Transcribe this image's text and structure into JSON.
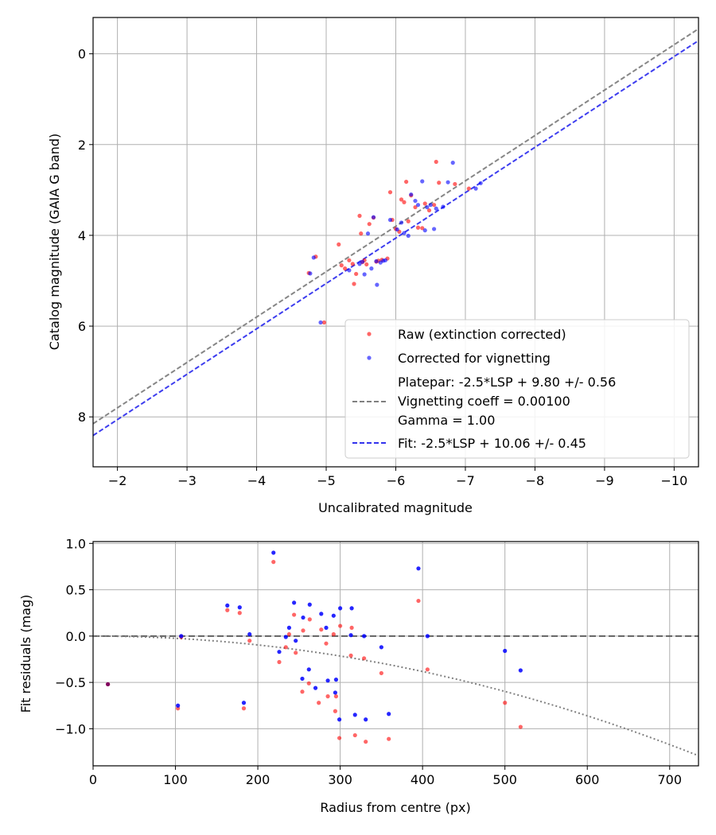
{
  "chart_data": [
    {
      "type": "scatter",
      "xlabel": "Uncalibrated magnitude",
      "ylabel": "Catalog magnitude (GAIA G band)",
      "xlim": [
        -1.65,
        -10.35
      ],
      "ylim": [
        9.1,
        -0.8
      ],
      "x_inverted": true,
      "y_inverted": true,
      "x_ticks": [
        -2,
        -3,
        -4,
        -5,
        -6,
        -7,
        -8,
        -9,
        -10
      ],
      "x_tick_labels": [
        "−2",
        "−3",
        "−4",
        "−5",
        "−6",
        "−7",
        "−8",
        "−9",
        "−10"
      ],
      "y_ticks": [
        0,
        2,
        4,
        6,
        8
      ],
      "y_tick_labels": [
        "0",
        "2",
        "4",
        "6",
        "8"
      ],
      "grid": true,
      "legend_placement": "lower-right",
      "series": [
        {
          "name": "Raw (extinction corrected)",
          "kind": "points",
          "color": "#ff0000",
          "points": [
            [
              -4.75,
              4.83
            ],
            [
              -4.85,
              4.47
            ],
            [
              -4.97,
              5.92
            ],
            [
              -5.18,
              4.2
            ],
            [
              -5.22,
              4.66
            ],
            [
              -5.27,
              4.73
            ],
            [
              -5.33,
              4.55
            ],
            [
              -5.38,
              4.63
            ],
            [
              -5.4,
              5.07
            ],
            [
              -5.43,
              4.85
            ],
            [
              -5.48,
              3.57
            ],
            [
              -5.5,
              3.96
            ],
            [
              -5.52,
              4.59
            ],
            [
              -5.55,
              4.55
            ],
            [
              -5.58,
              4.64
            ],
            [
              -5.62,
              3.75
            ],
            [
              -5.68,
              3.61
            ],
            [
              -5.72,
              4.58
            ],
            [
              -5.75,
              4.56
            ],
            [
              -5.8,
              4.54
            ],
            [
              -5.88,
              4.51
            ],
            [
              -5.92,
              3.05
            ],
            [
              -5.95,
              3.66
            ],
            [
              -6.0,
              3.86
            ],
            [
              -6.05,
              3.92
            ],
            [
              -6.08,
              3.21
            ],
            [
              -6.12,
              3.27
            ],
            [
              -6.15,
              2.82
            ],
            [
              -6.18,
              3.69
            ],
            [
              -6.22,
              3.12
            ],
            [
              -6.28,
              3.38
            ],
            [
              -6.32,
              3.83
            ],
            [
              -6.38,
              3.84
            ],
            [
              -6.42,
              3.3
            ],
            [
              -6.48,
              3.45
            ],
            [
              -6.55,
              3.33
            ],
            [
              -6.58,
              2.38
            ],
            [
              -6.62,
              2.84
            ],
            [
              -6.85,
              2.87
            ],
            [
              -7.05,
              2.97
            ]
          ]
        },
        {
          "name": "Corrected for vignetting",
          "kind": "points",
          "color": "#0000ff",
          "points": [
            [
              -4.77,
              4.84
            ],
            [
              -4.82,
              4.49
            ],
            [
              -4.92,
              5.92
            ],
            [
              -5.33,
              4.77
            ],
            [
              -5.48,
              4.63
            ],
            [
              -5.52,
              4.58
            ],
            [
              -5.55,
              4.86
            ],
            [
              -5.6,
              3.96
            ],
            [
              -5.65,
              4.73
            ],
            [
              -5.68,
              3.6
            ],
            [
              -5.72,
              4.57
            ],
            [
              -5.73,
              5.09
            ],
            [
              -5.78,
              4.6
            ],
            [
              -5.82,
              4.56
            ],
            [
              -5.85,
              4.55
            ],
            [
              -5.92,
              3.66
            ],
            [
              -6.02,
              3.87
            ],
            [
              -6.08,
              3.72
            ],
            [
              -6.12,
              3.95
            ],
            [
              -6.18,
              4.01
            ],
            [
              -6.22,
              3.1
            ],
            [
              -6.28,
              3.24
            ],
            [
              -6.32,
              3.33
            ],
            [
              -6.38,
              2.81
            ],
            [
              -6.42,
              3.89
            ],
            [
              -6.45,
              3.38
            ],
            [
              -6.5,
              3.33
            ],
            [
              -6.55,
              3.86
            ],
            [
              -6.58,
              3.41
            ],
            [
              -6.68,
              3.37
            ],
            [
              -6.75,
              2.83
            ],
            [
              -6.82,
              2.4
            ],
            [
              -7.15,
              2.97
            ],
            [
              -7.22,
              2.85
            ]
          ]
        },
        {
          "name": "Platepar: -2.5*LSP + 9.80 +/- 0.56",
          "name_line2": "Vignetting coeff = 0.00100",
          "name_line3": "Gamma = 1.00",
          "kind": "line",
          "style": "dashed",
          "color": "#808080",
          "slope": 1.0,
          "intercept": 9.8
        },
        {
          "name": "Fit: -2.5*LSP + 10.06 +/- 0.45",
          "kind": "line",
          "style": "dashed",
          "color": "#3333ee",
          "slope": 1.0,
          "intercept": 10.06
        }
      ]
    },
    {
      "type": "scatter",
      "xlabel": "Radius from centre (px)",
      "ylabel": "Fit residuals (mag)",
      "xlim": [
        0,
        735
      ],
      "ylim": [
        -1.4,
        1.02
      ],
      "x_ticks": [
        0,
        100,
        200,
        300,
        400,
        500,
        600,
        700
      ],
      "x_tick_labels": [
        "0",
        "100",
        "200",
        "300",
        "400",
        "500",
        "600",
        "700"
      ],
      "y_ticks": [
        1.0,
        0.5,
        0.0,
        -0.5,
        -1.0
      ],
      "y_tick_labels": [
        "1.0",
        "0.5",
        "0.0",
        "−0.5",
        "−1.0"
      ],
      "grid": true,
      "series": [
        {
          "name": "",
          "kind": "points",
          "color": "#ff0000",
          "points": [
            [
              18,
              -0.52
            ],
            [
              103,
              -0.78
            ],
            [
              107,
              -0.01
            ],
            [
              163,
              0.28
            ],
            [
              178,
              0.25
            ],
            [
              183,
              -0.78
            ],
            [
              190,
              -0.05
            ],
            [
              219,
              0.8
            ],
            [
              226,
              -0.28
            ],
            [
              234,
              -0.12
            ],
            [
              238,
              0.02
            ],
            [
              244,
              0.23
            ],
            [
              246,
              -0.18
            ],
            [
              254,
              -0.6
            ],
            [
              255,
              0.06
            ],
            [
              262,
              -0.51
            ],
            [
              263,
              0.18
            ],
            [
              274,
              -0.72
            ],
            [
              277,
              0.07
            ],
            [
              283,
              -0.08
            ],
            [
              285,
              -0.65
            ],
            [
              292,
              0.02
            ],
            [
              294,
              -0.81
            ],
            [
              295,
              -0.65
            ],
            [
              299,
              -1.1
            ],
            [
              300,
              0.11
            ],
            [
              313,
              -0.21
            ],
            [
              314,
              0.09
            ],
            [
              318,
              -1.07
            ],
            [
              329,
              -0.24
            ],
            [
              331,
              -1.14
            ],
            [
              350,
              -0.4
            ],
            [
              359,
              -1.11
            ],
            [
              395,
              0.38
            ],
            [
              406,
              -0.36
            ],
            [
              500,
              -0.72
            ],
            [
              519,
              -0.98
            ]
          ]
        },
        {
          "name": "",
          "kind": "points",
          "color": "#0000ff",
          "points": [
            [
              103,
              -0.75
            ],
            [
              107,
              0.0
            ],
            [
              163,
              0.33
            ],
            [
              178,
              0.31
            ],
            [
              183,
              -0.72
            ],
            [
              190,
              0.02
            ],
            [
              219,
              0.9
            ],
            [
              226,
              -0.17
            ],
            [
              234,
              -0.01
            ],
            [
              238,
              0.09
            ],
            [
              244,
              0.36
            ],
            [
              246,
              -0.05
            ],
            [
              254,
              -0.46
            ],
            [
              255,
              0.2
            ],
            [
              262,
              -0.36
            ],
            [
              263,
              0.34
            ],
            [
              270,
              -0.56
            ],
            [
              277,
              0.24
            ],
            [
              283,
              0.09
            ],
            [
              285,
              -0.48
            ],
            [
              292,
              0.22
            ],
            [
              294,
              -0.61
            ],
            [
              295,
              -0.47
            ],
            [
              299,
              -0.9
            ],
            [
              300,
              0.3
            ],
            [
              313,
              0.01
            ],
            [
              314,
              0.3
            ],
            [
              318,
              -0.85
            ],
            [
              329,
              0.0
            ],
            [
              331,
              -0.9
            ],
            [
              350,
              -0.12
            ],
            [
              359,
              -0.84
            ],
            [
              395,
              0.73
            ],
            [
              406,
              0.0
            ],
            [
              500,
              -0.16
            ],
            [
              519,
              -0.37
            ]
          ]
        },
        {
          "name": "",
          "kind": "hline",
          "style": "dashed",
          "color": "#555555",
          "y": 0.0
        },
        {
          "name": "",
          "kind": "curve",
          "style": "dotted",
          "color": "#808080",
          "coeff": -2.39e-06
        }
      ],
      "overlap_point": {
        "x": 18,
        "y": -0.52,
        "color": "#800060"
      }
    }
  ]
}
